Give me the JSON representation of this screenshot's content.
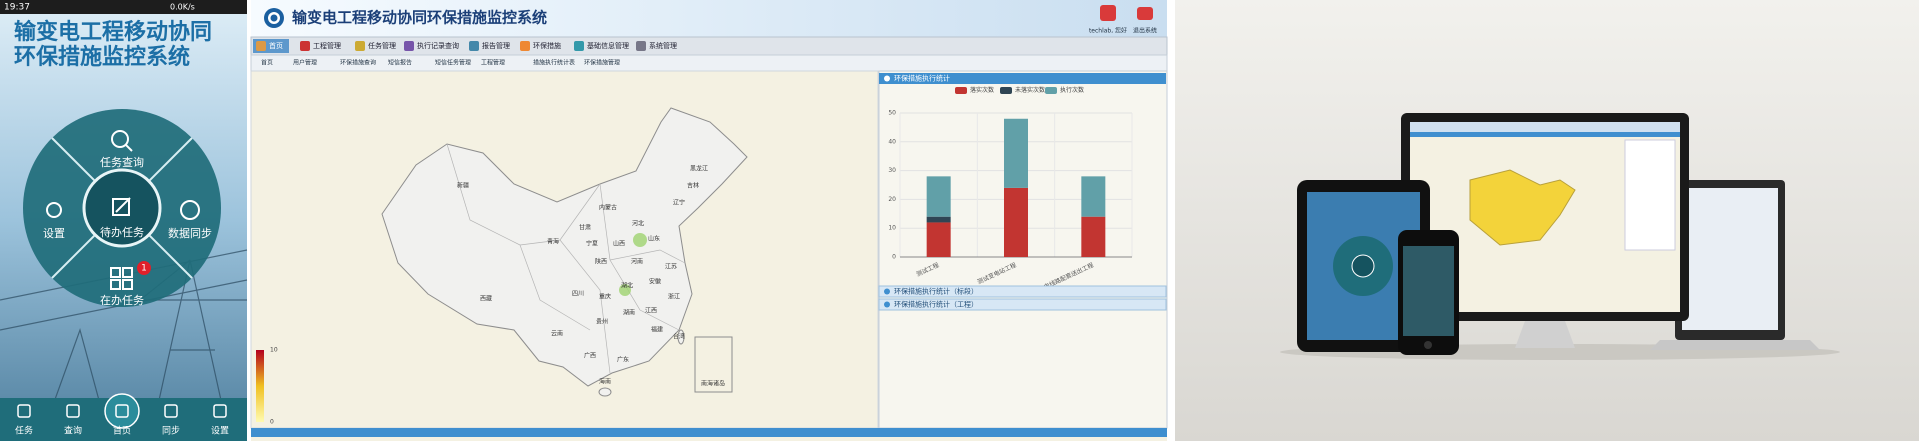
{
  "mobile": {
    "status_time": "19:37",
    "status_net": "0.0K/s",
    "title_lines": [
      "输变电工程移动协同",
      "环保措施监控系统"
    ],
    "menu": {
      "top": "任务查询",
      "left": "设置",
      "center": "待办任务",
      "right": "数据同步",
      "bottom": "在办任务",
      "badge": "1"
    },
    "nav": [
      "任务",
      "查询",
      "首页",
      "同步",
      "设置"
    ]
  },
  "web": {
    "title": "输变电工程移动协同环保措施监控系统",
    "user": "techlab, 您好",
    "logout": "退出系统",
    "menu": [
      "首页",
      "工程管理",
      "任务管理",
      "执行记录查询",
      "报告管理",
      "环保措施",
      "基础信息管理",
      "系统管理"
    ],
    "tabs": [
      "首页",
      "用户管理",
      "环保措施查询",
      "短信报告",
      "短信任务管理",
      "工程管理",
      "措施执行统计表",
      "环保措施管理"
    ],
    "provinces": [
      "新疆",
      "西藏",
      "青海",
      "甘肃",
      "内蒙古",
      "黑龙江",
      "吉林",
      "辽宁",
      "河北",
      "山西",
      "陕西",
      "宁夏",
      "四川",
      "重庆",
      "湖北",
      "河南",
      "山东",
      "江苏",
      "安徽",
      "浙江",
      "江西",
      "湖南",
      "贵州",
      "云南",
      "广西",
      "广东",
      "福建",
      "台湾",
      "海南",
      "南海诸岛"
    ],
    "map_legend": [
      "10",
      "0"
    ],
    "panels": [
      "环保措施执行统计（标段）",
      "环保措施执行统计（工程）"
    ]
  },
  "chart_data": {
    "type": "bar",
    "stacked": true,
    "title": "环保措施执行统计",
    "categories": [
      "测试工程",
      "测试变电站工程",
      "测试输电线路配套送出工程"
    ],
    "series": [
      {
        "name": "落实次数",
        "color": "#c23531",
        "values": [
          12,
          24,
          14
        ]
      },
      {
        "name": "未落实次数",
        "color": "#2f4554",
        "values": [
          2,
          0,
          0
        ]
      },
      {
        "name": "执行次数",
        "color": "#61a0a8",
        "values": [
          14,
          24,
          14
        ]
      }
    ],
    "ylim": [
      0,
      50
    ],
    "yticks": [
      0,
      10,
      20,
      30,
      40,
      50
    ],
    "grid": true
  }
}
